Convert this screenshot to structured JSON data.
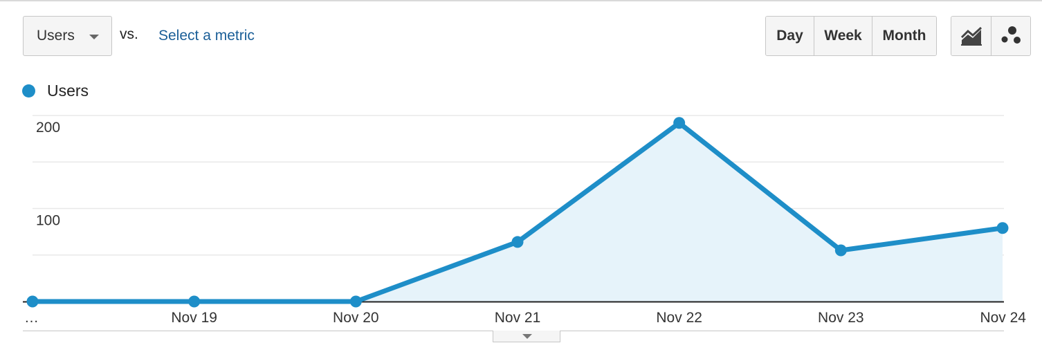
{
  "controls": {
    "metric_select": {
      "label": "Users"
    },
    "vs_label": "vs.",
    "compare_link": "Select a metric",
    "period": [
      {
        "label": "Day",
        "active": true
      },
      {
        "label": "Week",
        "active": false
      },
      {
        "label": "Month",
        "active": false
      }
    ],
    "chart_type": [
      {
        "icon": "line-chart-icon",
        "active": true
      },
      {
        "icon": "motion-chart-icon",
        "active": false
      }
    ]
  },
  "colors": {
    "series": "#1e8ec8",
    "area_fill": "#e6f3fa",
    "grid": "#e8e8e8",
    "axis": "#222222",
    "link": "#1a5e97"
  },
  "chart_data": {
    "type": "area",
    "title": "",
    "xlabel": "",
    "ylabel": "",
    "categories": [
      "…",
      "Nov 19",
      "Nov 20",
      "Nov 21",
      "Nov 22",
      "Nov 23",
      "Nov 24"
    ],
    "series": [
      {
        "name": "Users",
        "values": [
          0,
          0,
          0,
          64,
          192,
          55,
          79
        ]
      }
    ],
    "yticks": [
      100,
      200
    ],
    "ylim": [
      0,
      200
    ],
    "grid": true,
    "legend": "top-left"
  }
}
